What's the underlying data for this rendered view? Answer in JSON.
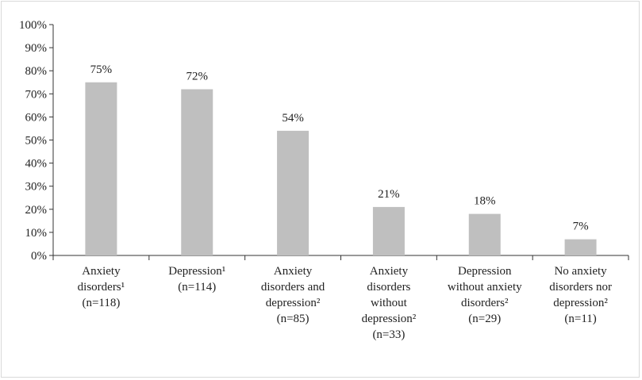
{
  "chart_data": {
    "type": "bar",
    "title": "",
    "xlabel": "",
    "ylabel": "",
    "ylim": [
      0,
      100
    ],
    "y_ticks": [
      "0%",
      "10%",
      "20%",
      "30%",
      "40%",
      "50%",
      "60%",
      "70%",
      "80%",
      "90%",
      "100%"
    ],
    "categories": [
      [
        "Anxiety",
        "disorders¹",
        "(n=118)"
      ],
      [
        "Depression¹",
        "(n=114)"
      ],
      [
        "Anxiety",
        "disorders and",
        "depression²",
        "(n=85)"
      ],
      [
        "Anxiety",
        "disorders",
        "without",
        "depression²",
        "(n=33)"
      ],
      [
        "Depression",
        "without anxiety",
        "disorders²",
        "(n=29)"
      ],
      [
        "No anxiety",
        "disorders nor",
        "depression²",
        "(n=11)"
      ]
    ],
    "values": [
      75,
      72,
      54,
      21,
      18,
      7
    ],
    "data_labels": [
      "75%",
      "72%",
      "54%",
      "21%",
      "18%",
      "7%"
    ],
    "bar_color": "#bfbfbf",
    "grid": false,
    "legend": "none"
  }
}
